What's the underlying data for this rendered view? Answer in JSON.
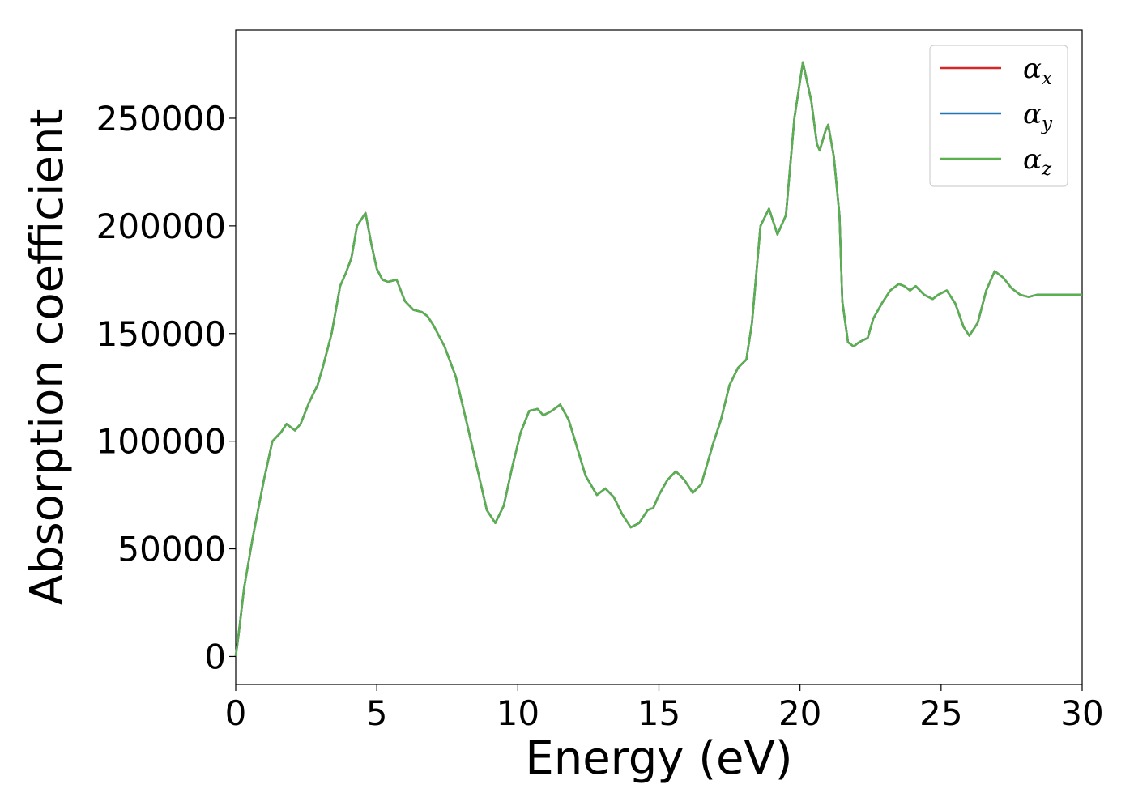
{
  "chart_data": {
    "type": "line",
    "xlabel": "Energy (eV)",
    "ylabel": "Absorption coefficient",
    "xlim": [
      0,
      30
    ],
    "ylim": [
      -13000,
      291000
    ],
    "xticks": [
      0,
      5,
      10,
      15,
      20,
      25,
      30
    ],
    "xtick_labels": [
      "0",
      "5",
      "10",
      "15",
      "20",
      "25",
      "30"
    ],
    "yticks": [
      0,
      50000,
      100000,
      150000,
      200000,
      250000
    ],
    "ytick_labels": [
      "0",
      "50000",
      "100000",
      "150000",
      "200000",
      "250000"
    ],
    "grid": false,
    "legend_position": "top-right",
    "x": [
      0.0,
      0.1,
      0.3,
      0.6,
      1.0,
      1.3,
      1.6,
      1.8,
      2.1,
      2.3,
      2.6,
      2.9,
      3.1,
      3.4,
      3.7,
      3.9,
      4.1,
      4.3,
      4.6,
      4.8,
      5.0,
      5.2,
      5.4,
      5.7,
      6.0,
      6.3,
      6.6,
      6.8,
      7.0,
      7.4,
      7.8,
      8.2,
      8.6,
      8.9,
      9.2,
      9.5,
      9.8,
      10.1,
      10.4,
      10.7,
      10.9,
      11.2,
      11.5,
      11.8,
      12.1,
      12.4,
      12.8,
      13.1,
      13.4,
      13.7,
      14.0,
      14.3,
      14.6,
      14.8,
      15.0,
      15.3,
      15.6,
      15.9,
      16.2,
      16.5,
      16.9,
      17.2,
      17.5,
      17.8,
      18.1,
      18.3,
      18.6,
      18.9,
      19.2,
      19.5,
      19.8,
      20.1,
      20.4,
      20.6,
      20.7,
      20.9,
      21.0,
      21.2,
      21.4,
      21.5,
      21.7,
      21.9,
      22.1,
      22.4,
      22.6,
      22.9,
      23.2,
      23.5,
      23.7,
      23.9,
      24.1,
      24.4,
      24.7,
      24.9,
      25.2,
      25.5,
      25.8,
      26.0,
      26.3,
      26.6,
      26.9,
      27.2,
      27.5,
      27.8,
      28.1,
      28.4,
      28.7,
      29.0,
      29.2,
      29.5,
      29.8,
      30.0
    ],
    "series": [
      {
        "name": "α_x",
        "name_main": "α",
        "name_sub": "x",
        "color": "#d62728",
        "values": [
          0,
          10000,
          32000,
          55000,
          82000,
          100000,
          104000,
          108000,
          105000,
          108000,
          118000,
          126000,
          135000,
          150000,
          172000,
          178000,
          185000,
          200000,
          206000,
          192000,
          180000,
          175000,
          174000,
          175000,
          165000,
          161000,
          160000,
          158000,
          154000,
          144000,
          130000,
          108000,
          85000,
          68000,
          62000,
          70000,
          88000,
          104000,
          114000,
          115000,
          112000,
          114000,
          117000,
          110000,
          97000,
          84000,
          75000,
          78000,
          74000,
          66000,
          60000,
          62000,
          68000,
          69000,
          75000,
          82000,
          86000,
          82000,
          76000,
          80000,
          98000,
          110000,
          126000,
          134000,
          138000,
          155000,
          200000,
          208000,
          196000,
          205000,
          250000,
          276000,
          258000,
          238000,
          235000,
          244000,
          247000,
          232000,
          205000,
          165000,
          146000,
          144000,
          146000,
          148000,
          157000,
          164000,
          170000,
          173000,
          172000,
          170000,
          172000,
          168000,
          166000,
          168000,
          170000,
          164000,
          153000,
          149000,
          155000,
          170000,
          179000,
          176000,
          171000,
          168000,
          167000,
          168000,
          168000,
          168000,
          168000,
          168000,
          168000,
          168000
        ]
      },
      {
        "name": "α_y",
        "name_main": "α",
        "name_sub": "y",
        "color": "#1f77b4",
        "values": [
          0,
          10000,
          32000,
          55000,
          82000,
          100000,
          104000,
          108000,
          105000,
          108000,
          118000,
          126000,
          135000,
          150000,
          172000,
          178000,
          185000,
          200000,
          206000,
          192000,
          180000,
          175000,
          174000,
          175000,
          165000,
          161000,
          160000,
          158000,
          154000,
          144000,
          130000,
          108000,
          85000,
          68000,
          62000,
          70000,
          88000,
          104000,
          114000,
          115000,
          112000,
          114000,
          117000,
          110000,
          97000,
          84000,
          75000,
          78000,
          74000,
          66000,
          60000,
          62000,
          68000,
          69000,
          75000,
          82000,
          86000,
          82000,
          76000,
          80000,
          98000,
          110000,
          126000,
          134000,
          138000,
          155000,
          200000,
          208000,
          196000,
          205000,
          250000,
          276000,
          258000,
          238000,
          235000,
          244000,
          247000,
          232000,
          205000,
          165000,
          146000,
          144000,
          146000,
          148000,
          157000,
          164000,
          170000,
          173000,
          172000,
          170000,
          172000,
          168000,
          166000,
          168000,
          170000,
          164000,
          153000,
          149000,
          155000,
          170000,
          179000,
          176000,
          171000,
          168000,
          167000,
          168000,
          168000,
          168000,
          168000,
          168000,
          168000,
          168000
        ]
      },
      {
        "name": "α_z",
        "name_main": "α",
        "name_sub": "z",
        "color": "#5aaf4f",
        "values": [
          0,
          10000,
          32000,
          55000,
          82000,
          100000,
          104000,
          108000,
          105000,
          108000,
          118000,
          126000,
          135000,
          150000,
          172000,
          178000,
          185000,
          200000,
          206000,
          192000,
          180000,
          175000,
          174000,
          175000,
          165000,
          161000,
          160000,
          158000,
          154000,
          144000,
          130000,
          108000,
          85000,
          68000,
          62000,
          70000,
          88000,
          104000,
          114000,
          115000,
          112000,
          114000,
          117000,
          110000,
          97000,
          84000,
          75000,
          78000,
          74000,
          66000,
          60000,
          62000,
          68000,
          69000,
          75000,
          82000,
          86000,
          82000,
          76000,
          80000,
          98000,
          110000,
          126000,
          134000,
          138000,
          155000,
          200000,
          208000,
          196000,
          205000,
          250000,
          276000,
          258000,
          238000,
          235000,
          244000,
          247000,
          232000,
          205000,
          165000,
          146000,
          144000,
          146000,
          148000,
          157000,
          164000,
          170000,
          173000,
          172000,
          170000,
          172000,
          168000,
          166000,
          168000,
          170000,
          164000,
          153000,
          149000,
          155000,
          170000,
          179000,
          176000,
          171000,
          168000,
          167000,
          168000,
          168000,
          168000,
          168000,
          168000,
          168000,
          168000
        ]
      }
    ]
  }
}
